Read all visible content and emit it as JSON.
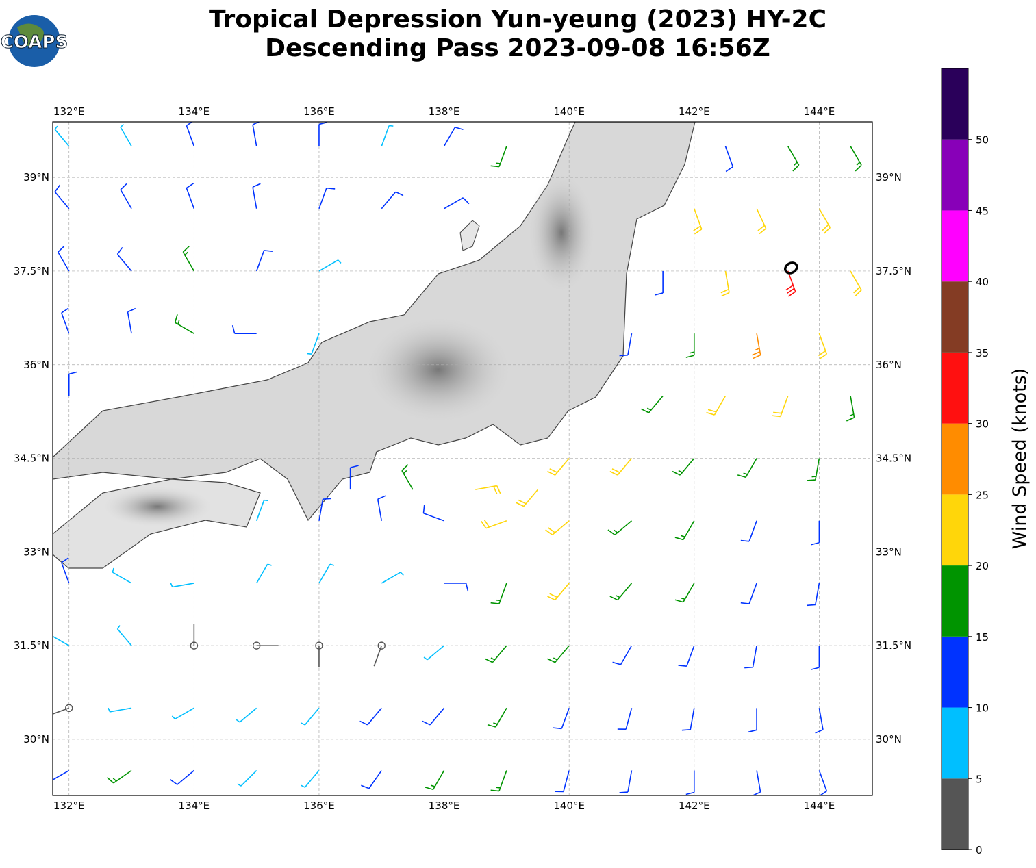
{
  "chart_data": {
    "type": "wind-barb-map",
    "title": [
      "Tropical Depression Yun-yeung (2023) HY-2C",
      "Descending Pass 2023-09-08 16:56Z"
    ],
    "logo": "COAPS",
    "xlim": [
      131.74,
      144.85
    ],
    "ylim": [
      29.1,
      39.89
    ],
    "xticks": [
      {
        "value": 132,
        "label": "132°E"
      },
      {
        "value": 134,
        "label": "134°E"
      },
      {
        "value": 136,
        "label": "136°E"
      },
      {
        "value": 138,
        "label": "138°E"
      },
      {
        "value": 140,
        "label": "140°E"
      },
      {
        "value": 142,
        "label": "142°E"
      },
      {
        "value": 144,
        "label": "144°E"
      }
    ],
    "yticks": [
      {
        "value": 30,
        "label": "30°N"
      },
      {
        "value": 31.5,
        "label": "31.5°N"
      },
      {
        "value": 33,
        "label": "33°N"
      },
      {
        "value": 34.5,
        "label": "34.5°N"
      },
      {
        "value": 36,
        "label": "36°N"
      },
      {
        "value": 37.5,
        "label": "37.5°N"
      },
      {
        "value": 39,
        "label": "39°N"
      }
    ],
    "grid": true,
    "colorbar": {
      "label": "Wind Speed (knots)",
      "bounds": [
        0,
        5,
        10,
        15,
        20,
        25,
        30,
        35,
        40,
        45,
        50,
        55
      ],
      "colors": [
        "#555555",
        "#00bfff",
        "#0033ff",
        "#009400",
        "#ffd60a",
        "#ff8c00",
        "#ff1010",
        "#843c24",
        "#ff00ff",
        "#8800b8",
        "#2a005a"
      ],
      "ticks": [
        0,
        5,
        10,
        15,
        20,
        25,
        30,
        35,
        40,
        45,
        50
      ]
    },
    "center": [
      143.55,
      37.55
    ],
    "barbs": [
      [
        132,
        39.5,
        320,
        8
      ],
      [
        133,
        39.5,
        330,
        8
      ],
      [
        134,
        39.5,
        340,
        10
      ],
      [
        135,
        39.5,
        350,
        11
      ],
      [
        136,
        39.5,
        0,
        11
      ],
      [
        137,
        39.5,
        20,
        9
      ],
      [
        138,
        39.5,
        30,
        14
      ],
      [
        139,
        39.5,
        200,
        17
      ],
      [
        142.5,
        39.5,
        160,
        12
      ],
      [
        143.5,
        39.5,
        150,
        16
      ],
      [
        144.5,
        39.5,
        150,
        18
      ],
      [
        132,
        38.5,
        320,
        10
      ],
      [
        133,
        38.5,
        330,
        11
      ],
      [
        134,
        38.5,
        340,
        12
      ],
      [
        135,
        38.5,
        350,
        12
      ],
      [
        136,
        38.5,
        20,
        11
      ],
      [
        137,
        38.5,
        40,
        12
      ],
      [
        138,
        38.5,
        60,
        13
      ],
      [
        142,
        38.5,
        160,
        22
      ],
      [
        143,
        38.5,
        155,
        24
      ],
      [
        144,
        38.5,
        150,
        20
      ],
      [
        132,
        37.5,
        330,
        12
      ],
      [
        133,
        37.5,
        320,
        12
      ],
      [
        134,
        37.5,
        330,
        18
      ],
      [
        135,
        37.5,
        20,
        12
      ],
      [
        136,
        37.5,
        60,
        8
      ],
      [
        141.5,
        37.5,
        180,
        12
      ],
      [
        142.5,
        37.5,
        170,
        22
      ],
      [
        143.5,
        37.5,
        160,
        34
      ],
      [
        144.5,
        37.5,
        150,
        20
      ],
      [
        132,
        36.5,
        340,
        10
      ],
      [
        133,
        36.5,
        350,
        12
      ],
      [
        134,
        36.5,
        300,
        17
      ],
      [
        135,
        36.5,
        270,
        12
      ],
      [
        136,
        36.5,
        200,
        8
      ],
      [
        141,
        36.5,
        190,
        12
      ],
      [
        142,
        36.5,
        180,
        18
      ],
      [
        143,
        36.5,
        170,
        26
      ],
      [
        144,
        36.5,
        160,
        22
      ],
      [
        132,
        35.5,
        0,
        12
      ],
      [
        141.5,
        35.5,
        220,
        18
      ],
      [
        142.5,
        35.5,
        210,
        22
      ],
      [
        143.5,
        35.5,
        200,
        20
      ],
      [
        144.5,
        35.5,
        170,
        18
      ],
      [
        140,
        34.5,
        220,
        22
      ],
      [
        141,
        34.5,
        220,
        22
      ],
      [
        142,
        34.5,
        220,
        18
      ],
      [
        143,
        34.5,
        210,
        18
      ],
      [
        144,
        34.5,
        190,
        15
      ],
      [
        136.5,
        34,
        0,
        12
      ],
      [
        137.5,
        34,
        330,
        16
      ],
      [
        138.5,
        34,
        80,
        22
      ],
      [
        139.5,
        34,
        220,
        22
      ],
      [
        135,
        33.5,
        20,
        9
      ],
      [
        136,
        33.5,
        10,
        10
      ],
      [
        137,
        33.5,
        350,
        12
      ],
      [
        138,
        33.5,
        290,
        13
      ],
      [
        139,
        33.5,
        250,
        20
      ],
      [
        140,
        33.5,
        230,
        22
      ],
      [
        141,
        33.5,
        230,
        18
      ],
      [
        142,
        33.5,
        210,
        17
      ],
      [
        143,
        33.5,
        200,
        14
      ],
      [
        144,
        33.5,
        180,
        12
      ],
      [
        132,
        32.5,
        340,
        12
      ],
      [
        133,
        32.5,
        300,
        8
      ],
      [
        134,
        32.5,
        260,
        7
      ],
      [
        135,
        32.5,
        30,
        8
      ],
      [
        136,
        32.5,
        30,
        9
      ],
      [
        137,
        32.5,
        60,
        8
      ],
      [
        138,
        32.5,
        90,
        10
      ],
      [
        139,
        32.5,
        200,
        17
      ],
      [
        140,
        32.5,
        220,
        22
      ],
      [
        141,
        32.5,
        220,
        18
      ],
      [
        142,
        32.5,
        210,
        15
      ],
      [
        143,
        32.5,
        200,
        13
      ],
      [
        144,
        32.5,
        190,
        12
      ],
      [
        132,
        31.5,
        300,
        7
      ],
      [
        133,
        31.5,
        320,
        8
      ],
      [
        134,
        31.5,
        0,
        3
      ],
      [
        135,
        31.5,
        90,
        3
      ],
      [
        136,
        31.5,
        180,
        3
      ],
      [
        137,
        31.5,
        200,
        4
      ],
      [
        138,
        31.5,
        230,
        8
      ],
      [
        139,
        31.5,
        220,
        15
      ],
      [
        140,
        31.5,
        220,
        17
      ],
      [
        141,
        31.5,
        210,
        14
      ],
      [
        142,
        31.5,
        200,
        13
      ],
      [
        143,
        31.5,
        190,
        12
      ],
      [
        144,
        31.5,
        180,
        12
      ],
      [
        132,
        30.5,
        250,
        4
      ],
      [
        133,
        30.5,
        260,
        7
      ],
      [
        134,
        30.5,
        240,
        8
      ],
      [
        135,
        30.5,
        230,
        8
      ],
      [
        136,
        30.5,
        220,
        8
      ],
      [
        137,
        30.5,
        220,
        10
      ],
      [
        138,
        30.5,
        220,
        14
      ],
      [
        139,
        30.5,
        210,
        16
      ],
      [
        140,
        30.5,
        200,
        14
      ],
      [
        141,
        30.5,
        195,
        13
      ],
      [
        142,
        30.5,
        190,
        12
      ],
      [
        143,
        30.5,
        180,
        11
      ],
      [
        144,
        30.5,
        170,
        11
      ],
      [
        132,
        29.5,
        240,
        12
      ],
      [
        133,
        29.5,
        235,
        17
      ],
      [
        134,
        29.5,
        230,
        10
      ],
      [
        135,
        29.5,
        225,
        8
      ],
      [
        136,
        29.5,
        220,
        8
      ],
      [
        137,
        29.5,
        215,
        12
      ],
      [
        138,
        29.5,
        210,
        16
      ],
      [
        139,
        29.5,
        200,
        15
      ],
      [
        140,
        29.5,
        195,
        13
      ],
      [
        141,
        29.5,
        190,
        12
      ],
      [
        142,
        29.5,
        180,
        12
      ],
      [
        143,
        29.5,
        170,
        11
      ],
      [
        144,
        29.5,
        160,
        10
      ]
    ]
  }
}
